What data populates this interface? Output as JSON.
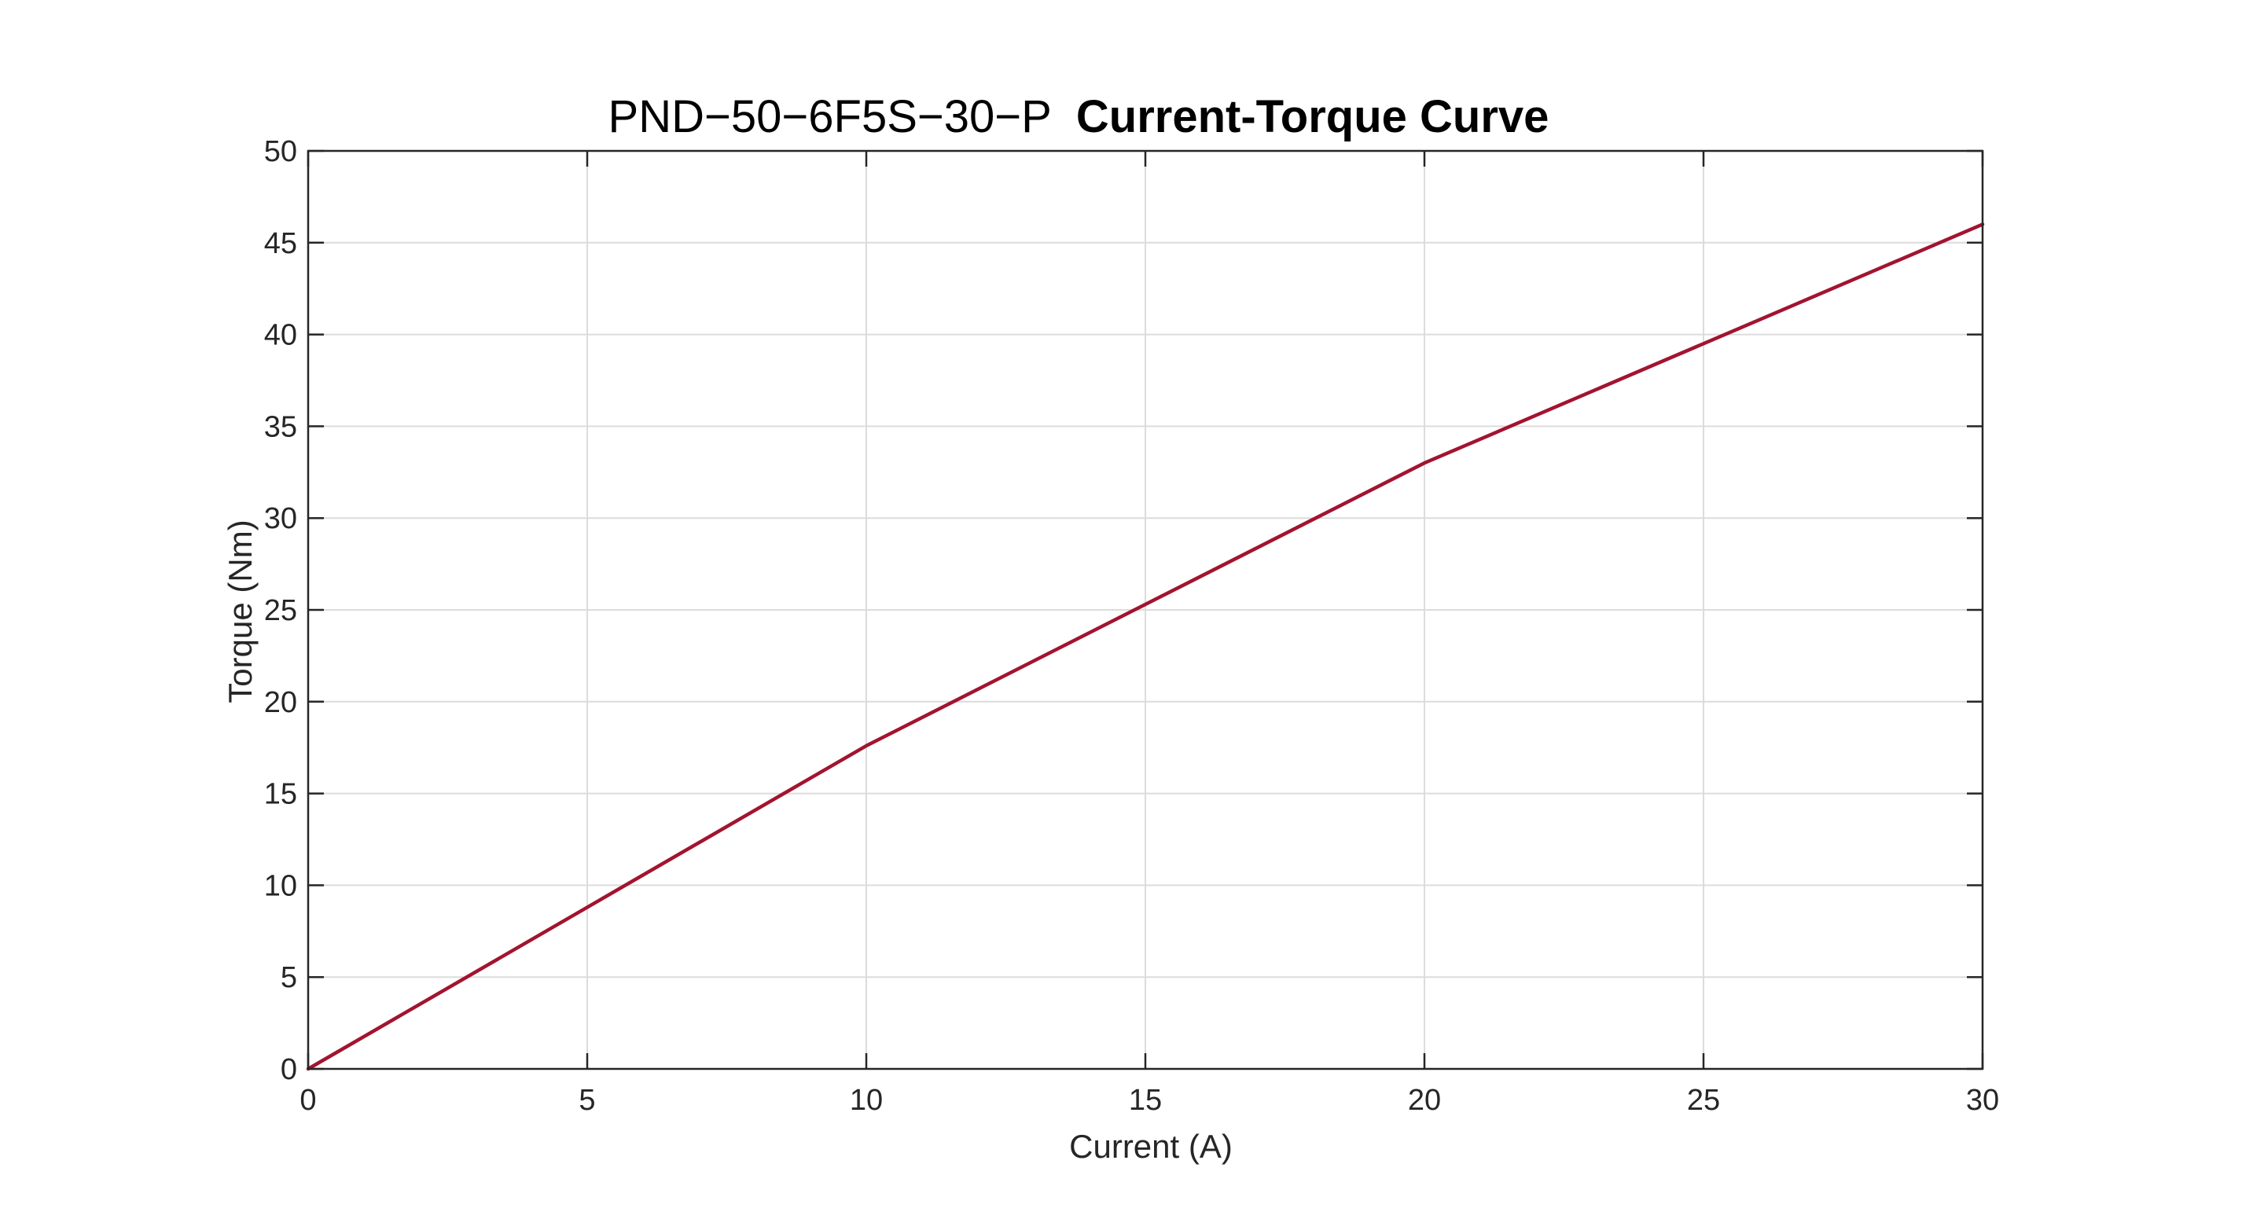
{
  "chart_data": {
    "type": "line",
    "title": {
      "model": "PND−50−6F5S−30−P",
      "suffix": "Current-Torque Curve"
    },
    "xlabel": "Current (A)",
    "ylabel": "Torque (Nm)",
    "xlim": [
      0,
      30
    ],
    "ylim": [
      0,
      50
    ],
    "xticks": [
      0,
      5,
      10,
      15,
      20,
      25,
      30
    ],
    "yticks": [
      0,
      5,
      10,
      15,
      20,
      25,
      30,
      35,
      40,
      45,
      50
    ],
    "grid": true,
    "series": [
      {
        "color": "#A2142F",
        "x": [
          0,
          10,
          20,
          30
        ],
        "y": [
          0,
          17.6,
          33.0,
          46.0
        ]
      }
    ]
  }
}
